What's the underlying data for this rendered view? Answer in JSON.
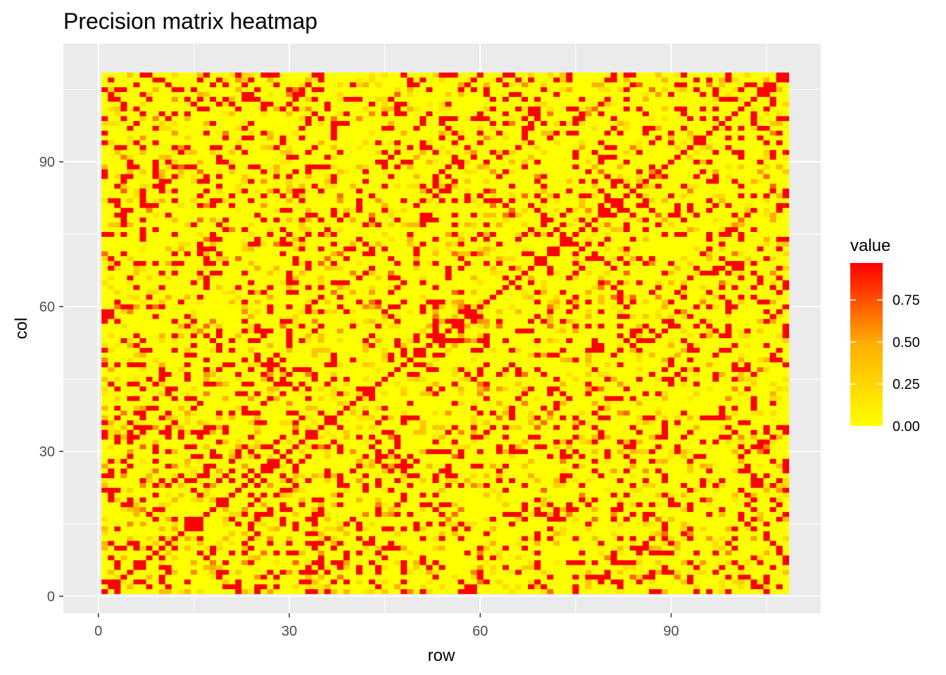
{
  "chart_data": {
    "type": "heatmap",
    "title": "Precision matrix heatmap",
    "xlabel": "row",
    "ylabel": "col",
    "xlim": [
      -5.5,
      113.5
    ],
    "ylim": [
      -3.5,
      114.5
    ],
    "x_ticks": [
      0,
      30,
      60,
      90
    ],
    "y_ticks": [
      0,
      30,
      60,
      90
    ],
    "n": 108,
    "value_range": [
      0,
      0.97
    ],
    "colors": {
      "low": "#FFFF00",
      "high": "#FF0000",
      "panel": "#EBEBEB",
      "grid": "#FFFFFF"
    },
    "legend": {
      "title": "value",
      "position": "right",
      "breaks": [
        0,
        0.25,
        0.5,
        0.75
      ],
      "labels": [
        "0.00",
        "0.25",
        "0.50",
        "0.75"
      ]
    },
    "grid": true,
    "diagonal_value": 0.97,
    "note_values": "matrix cells: diagonal at 0.97, symmetric off-diagonal blocks mostly 0 with scattered entries near 0.97 and some intermediate values 0.1-0.4"
  }
}
